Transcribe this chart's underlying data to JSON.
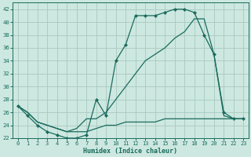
{
  "xlabel": "Humidex (Indice chaleur)",
  "background_color": "#cde8e0",
  "grid_color": "#a8c8c0",
  "line_color": "#1a6b5e",
  "xlim": [
    -0.5,
    23.5
  ],
  "ylim": [
    22,
    43
  ],
  "xticks": [
    0,
    1,
    2,
    3,
    4,
    5,
    6,
    7,
    8,
    9,
    10,
    11,
    12,
    13,
    14,
    15,
    16,
    17,
    18,
    19,
    20,
    21,
    22,
    23
  ],
  "yticks": [
    22,
    24,
    26,
    28,
    30,
    32,
    34,
    36,
    38,
    40,
    42
  ],
  "line1_x": [
    0,
    1,
    2,
    3,
    4,
    5,
    6,
    7,
    8,
    9,
    10,
    11,
    12,
    13,
    14,
    15,
    16,
    17,
    18,
    19,
    20,
    21,
    22,
    23
  ],
  "line1_y": [
    27,
    25.5,
    24,
    23,
    22.5,
    22,
    22,
    22.5,
    28,
    25.5,
    34,
    36.5,
    41,
    41,
    41,
    41.5,
    42,
    42,
    41.5,
    38,
    35,
    26,
    25,
    25
  ],
  "line2_x": [
    0,
    1,
    2,
    3,
    4,
    5,
    6,
    7,
    8,
    9,
    10,
    11,
    12,
    13,
    14,
    15,
    16,
    17,
    18,
    19,
    20,
    21,
    22,
    23
  ],
  "line2_y": [
    27,
    26,
    24.5,
    24,
    23.5,
    23,
    23,
    23,
    23.5,
    24,
    24,
    24.5,
    24.5,
    24.5,
    24.5,
    25,
    25,
    25,
    25,
    25,
    25,
    25,
    25,
    25
  ],
  "line3_x": [
    0,
    1,
    2,
    3,
    4,
    5,
    6,
    7,
    8,
    9,
    10,
    11,
    12,
    13,
    14,
    15,
    16,
    17,
    18,
    19,
    20,
    21,
    22,
    23
  ],
  "line3_y": [
    27,
    26,
    24.5,
    24,
    23.5,
    23,
    23.5,
    25,
    25,
    26,
    28,
    30,
    32,
    34,
    35,
    36,
    37.5,
    38.5,
    40.5,
    40.5,
    35,
    25.5,
    25,
    25
  ]
}
